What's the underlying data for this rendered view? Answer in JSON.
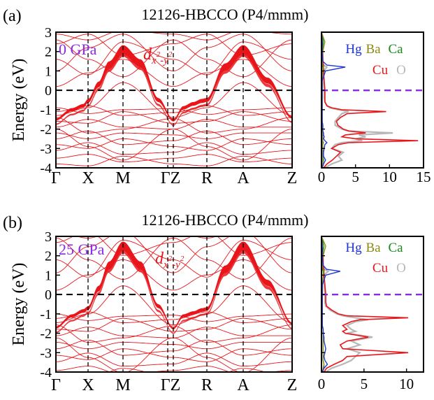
{
  "colors": {
    "band": "#e8161b",
    "axis": "#000000",
    "pressure_label": "#8a2be2",
    "fermi_line": "#8a2be2",
    "dos_Hg": "#1f35d6",
    "dos_Ba": "#8c8a16",
    "dos_Ca": "#1a8a1a",
    "dos_Cu": "#e8161b",
    "dos_O": "#b8b8b8"
  },
  "chart_data": [
    {
      "type": "line",
      "panel": "(a)",
      "title": "12126-HBCCO (P4/mmm)",
      "ylabel": "Energy (eV)",
      "ylim": [
        -4,
        3
      ],
      "yticks": [
        "3",
        "2",
        "1",
        "0",
        "-1",
        "-2",
        "-3",
        "-4"
      ],
      "kpath_labels": [
        "Γ",
        "X",
        "M",
        "ΓZ",
        "R",
        "A",
        "Z"
      ],
      "pressure_label": "0 GPa",
      "orbital_label": {
        "d": "d",
        "sub1": "x",
        "sup1": "2",
        "sub_dash": "-y",
        "sup2": "2"
      },
      "fermi_level": 0,
      "band_kinks": [
        0,
        1,
        2,
        3,
        4,
        5
      ],
      "dxy_band": {
        "k": [
          0,
          0.5,
          0.85,
          1,
          1.3,
          1.6,
          2.0,
          2.35,
          2.7,
          3,
          3.3,
          3.6,
          3.85,
          4,
          4.5,
          5,
          5.5,
          6
        ],
        "e": [
          -1.5,
          -1.0,
          -0.8,
          -0.55,
          0.3,
          1.3,
          2.1,
          1.4,
          -0.5,
          -1.55,
          -0.9,
          -0.7,
          -0.55,
          -0.5,
          1.2,
          2.1,
          0.5,
          -1.4
        ]
      },
      "dos": {
        "xlim": [
          0,
          15
        ],
        "xticks": [
          "0",
          "5",
          "10",
          "15"
        ],
        "ylim": [
          -4,
          3
        ],
        "legend": [
          "Hg",
          "Ba",
          "Ca",
          "Cu",
          "O"
        ],
        "energy": [
          -4,
          -3.8,
          -3.6,
          -3.4,
          -3.2,
          -3.0,
          -2.8,
          -2.7,
          -2.6,
          -2.5,
          -2.4,
          -2.3,
          -2.2,
          -2.1,
          -2.0,
          -1.9,
          -1.8,
          -1.6,
          -1.4,
          -1.2,
          -1.1,
          -1.0,
          -0.9,
          -0.8,
          -0.6,
          -0.4,
          -0.2,
          0,
          0.5,
          1.0,
          1.2,
          1.3,
          1.5,
          2.0,
          2.5,
          3.0
        ],
        "Cu": [
          0.3,
          0.8,
          1.6,
          2.2,
          2.8,
          1.5,
          2.5,
          4.0,
          14.2,
          5.0,
          3.0,
          3.5,
          6.5,
          4.0,
          3.2,
          2.8,
          2.4,
          2.2,
          2.8,
          3.8,
          9.5,
          3.0,
          1.5,
          0.8,
          0.5,
          0.5,
          0.5,
          0.5,
          0.4,
          0.3,
          0.3,
          0.3,
          0.2,
          0.2,
          0.1,
          0.0
        ],
        "O": [
          0.5,
          1.5,
          3.0,
          2.5,
          3.2,
          1.5,
          2.0,
          3.0,
          6.0,
          5.0,
          6.5,
          5.5,
          10.5,
          4.0,
          3.0,
          2.5,
          2.0,
          2.0,
          2.5,
          3.0,
          4.0,
          2.5,
          1.2,
          0.8,
          0.5,
          0.4,
          0.4,
          0.4,
          0.3,
          0.3,
          0.8,
          0.3,
          0.2,
          0.1,
          0.1,
          0.0
        ],
        "Hg": [
          0.1,
          0.3,
          0.6,
          0.3,
          0.3,
          0.4,
          0.5,
          0.8,
          0.5,
          0.3,
          0.4,
          0.3,
          0.3,
          0.2,
          0.2,
          0.2,
          0.2,
          0.1,
          0.1,
          0.1,
          0.1,
          0.1,
          0.1,
          0.1,
          0.1,
          0.1,
          0.1,
          0.1,
          0.1,
          0.6,
          3.5,
          0.8,
          0.2,
          0.1,
          0.1,
          0.0
        ],
        "Ba": [
          0.1,
          0.2,
          0.2,
          0.2,
          0.2,
          0.2,
          0.2,
          0.3,
          0.2,
          0.2,
          0.2,
          0.2,
          0.2,
          0.2,
          0.2,
          0.2,
          0.2,
          0.1,
          0.1,
          0.1,
          0.1,
          0.1,
          0.1,
          0.1,
          0.1,
          0.1,
          0.1,
          0.1,
          0.1,
          0.2,
          0.3,
          0.2,
          0.1,
          0.2,
          0.5,
          0.0
        ],
        "Ca": [
          0.1,
          0.2,
          0.3,
          0.2,
          0.2,
          0.2,
          0.2,
          0.2,
          0.2,
          0.2,
          0.2,
          0.2,
          0.2,
          0.2,
          0.2,
          0.2,
          0.2,
          0.1,
          0.1,
          0.1,
          0.1,
          0.1,
          0.1,
          0.1,
          0.1,
          0.1,
          0.1,
          0.1,
          0.1,
          0.2,
          0.2,
          0.1,
          0.1,
          0.1,
          0.3,
          0.0
        ]
      }
    },
    {
      "type": "line",
      "panel": "(b)",
      "title": "12126-HBCCO (P4/mmm)",
      "ylabel": "Energy (eV)",
      "ylim": [
        -4,
        3
      ],
      "yticks": [
        "3",
        "2",
        "1",
        "0",
        "-1",
        "-2",
        "-3",
        "-4"
      ],
      "kpath_labels": [
        "Γ",
        "X",
        "M",
        "ΓZ",
        "R",
        "A",
        "Z"
      ],
      "pressure_label": "25 GPa",
      "orbital_label": {
        "d": "d",
        "sub1": "x",
        "sup1": "2",
        "sub_dash": "-y",
        "sup2": "2"
      },
      "fermi_level": 0,
      "band_kinks": [
        0,
        1,
        2,
        3,
        4,
        5
      ],
      "dxy_band": {
        "k": [
          0,
          0.5,
          0.85,
          1,
          1.3,
          1.6,
          2.0,
          2.35,
          2.7,
          3,
          3.3,
          3.6,
          3.85,
          4,
          4.5,
          5,
          5.5,
          6
        ],
        "e": [
          -1.7,
          -1.1,
          -0.85,
          -0.7,
          0.3,
          1.5,
          2.5,
          1.5,
          -0.6,
          -1.75,
          -1.1,
          -0.95,
          -0.8,
          -0.75,
          1.3,
          2.5,
          0.6,
          -1.5
        ]
      },
      "dos": {
        "xlim": [
          0,
          12
        ],
        "xticks": [
          "0",
          "5",
          "10"
        ],
        "ylim": [
          -4,
          3
        ],
        "legend": [
          "Hg",
          "Ba",
          "Ca",
          "Cu",
          "O"
        ],
        "energy": [
          -4,
          -3.8,
          -3.6,
          -3.4,
          -3.2,
          -3.0,
          -2.8,
          -2.6,
          -2.4,
          -2.2,
          -2.0,
          -1.9,
          -1.8,
          -1.6,
          -1.4,
          -1.3,
          -1.2,
          -1.1,
          -1.0,
          -0.8,
          -0.6,
          -0.4,
          -0.2,
          0,
          0.5,
          1.0,
          1.2,
          1.3,
          1.5,
          2.0,
          2.5,
          3.0
        ],
        "Cu": [
          0.3,
          0.6,
          1.5,
          2.5,
          3.0,
          10.2,
          2.5,
          2.2,
          3.0,
          5.5,
          2.8,
          2.5,
          3.0,
          2.5,
          3.5,
          4.5,
          10.2,
          3.0,
          2.0,
          1.2,
          0.6,
          0.5,
          0.5,
          0.5,
          0.4,
          0.3,
          0.3,
          0.3,
          0.2,
          0.2,
          0.1,
          0.0
        ],
        "O": [
          0.5,
          1.2,
          2.5,
          3.5,
          4.0,
          4.5,
          3.0,
          4.5,
          3.5,
          6.0,
          3.0,
          4.0,
          3.5,
          3.0,
          4.0,
          5.5,
          4.0,
          2.5,
          1.8,
          1.0,
          0.5,
          0.4,
          0.4,
          0.4,
          0.3,
          0.3,
          0.8,
          0.3,
          0.2,
          0.1,
          0.1,
          0.0
        ],
        "Hg": [
          0.1,
          0.3,
          0.7,
          0.4,
          0.3,
          0.4,
          0.5,
          0.4,
          0.3,
          0.3,
          0.2,
          0.2,
          0.2,
          0.1,
          0.1,
          0.1,
          0.1,
          0.1,
          0.1,
          0.1,
          0.1,
          0.1,
          0.1,
          0.1,
          0.1,
          0.5,
          2.2,
          0.6,
          0.2,
          0.1,
          0.1,
          0.0
        ],
        "Ba": [
          0.1,
          0.2,
          0.3,
          0.2,
          0.2,
          0.2,
          0.2,
          0.2,
          0.2,
          0.2,
          0.2,
          0.2,
          0.2,
          0.1,
          0.1,
          0.1,
          0.1,
          0.1,
          0.1,
          0.1,
          0.1,
          0.1,
          0.1,
          0.1,
          0.1,
          0.2,
          0.3,
          0.2,
          0.1,
          0.2,
          0.5,
          0.0
        ],
        "Ca": [
          0.1,
          0.3,
          0.3,
          0.2,
          0.2,
          0.2,
          0.2,
          0.2,
          0.2,
          0.2,
          0.2,
          0.2,
          0.2,
          0.1,
          0.1,
          0.1,
          0.1,
          0.1,
          0.1,
          0.1,
          0.1,
          0.1,
          0.1,
          0.1,
          0.1,
          0.2,
          0.2,
          0.1,
          0.1,
          0.1,
          0.3,
          0.0
        ]
      }
    }
  ]
}
